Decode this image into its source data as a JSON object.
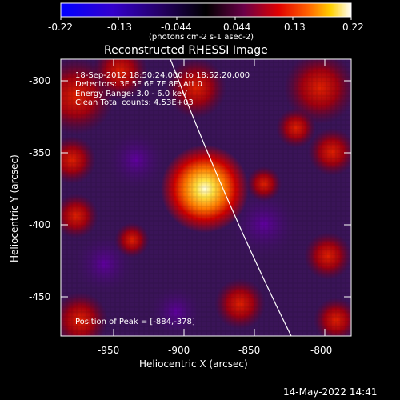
{
  "colorbar": {
    "tick_labels": [
      "-0.22",
      "-0.13",
      "-0.044",
      "0.044",
      "0.13",
      "0.22"
    ],
    "units_label": "(photons cm-2 s-1 asec-2)",
    "colormap": [
      "#0000ff",
      "#4b00b4",
      "#000000",
      "#7b0048",
      "#ff2000",
      "#ff8000",
      "#ffe000",
      "#ffffff"
    ]
  },
  "plot": {
    "title": "Reconstructed RHESSI Image",
    "xlabel": "Heliocentric X (arcsec)",
    "ylabel": "Heliocentric Y (arcsec)",
    "x_ticks": [
      "-950",
      "-900",
      "-850",
      "-800"
    ],
    "y_ticks": [
      "-300",
      "-350",
      "-400",
      "-450"
    ],
    "info_lines": [
      "18-Sep-2012 18:50:24.000 to 18:52:20.000",
      "Detectors: 3F 5F 6F 7F 8F, Att 0",
      "Energy Range: 3.0 - 6.0 keV",
      "Clean     Total counts: 4.53E+03"
    ],
    "peak_label": "Position of Peak = [-884,-378]",
    "colors": {
      "background_purple": "#3a1458",
      "limb_line": "#ffffff"
    }
  },
  "footer": {
    "date": "14-May-2022 14:41"
  }
}
